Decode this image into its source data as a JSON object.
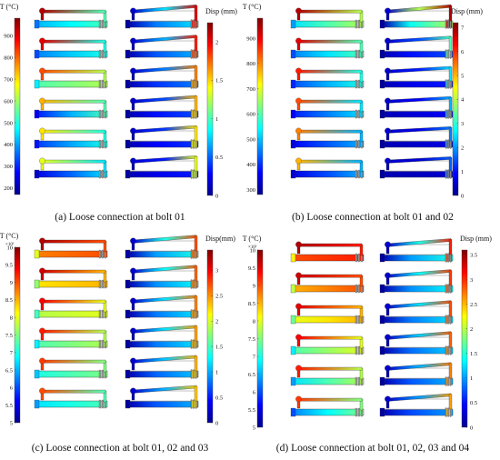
{
  "figure": {
    "panels": [
      {
        "id": "a",
        "caption": "(a) Loose connection at bolt 01",
        "temp_colorbar": {
          "title": "T (°C)",
          "exponent": "",
          "ticks": [
            "900",
            "800",
            "700",
            "600",
            "500",
            "400",
            "300",
            "200"
          ],
          "min": 170,
          "max": 980
        },
        "disp_colorbar": {
          "title": "Disp (mm)",
          "exponent": "",
          "ticks": [
            "2",
            "1.5",
            "1",
            "0.5",
            "0"
          ],
          "min": 0,
          "max": 2.25
        },
        "temp_models": [
          {
            "hot": 0.95,
            "warm": 0.45,
            "base": 0.3
          },
          {
            "hot": 0.9,
            "warm": 0.4,
            "base": 0.25
          },
          {
            "hot": 0.8,
            "warm": 0.55,
            "base": 0.45
          },
          {
            "hot": 0.7,
            "warm": 0.45,
            "base": 0.15
          },
          {
            "hot": 0.65,
            "warm": 0.4,
            "base": 0.18
          },
          {
            "hot": 0.6,
            "warm": 0.35,
            "base": 0.1
          }
        ],
        "disp_models": [
          {
            "mid": 0.35,
            "tip": 0.9
          },
          {
            "mid": 0.3,
            "tip": 0.85
          },
          {
            "mid": 0.25,
            "tip": 0.75
          },
          {
            "mid": 0.2,
            "tip": 0.7
          },
          {
            "mid": 0.18,
            "tip": 0.65
          },
          {
            "mid": 0.15,
            "tip": 0.6
          }
        ]
      },
      {
        "id": "b",
        "caption": "(b) Loose connection at bolt 01 and 02",
        "temp_colorbar": {
          "title": "T (°C)",
          "exponent": "",
          "ticks": [
            "900",
            "800",
            "700",
            "600",
            "500",
            "400",
            "300"
          ],
          "min": 280,
          "max": 980
        },
        "disp_colorbar": {
          "title": "Disp (mm)",
          "exponent": "",
          "ticks": [
            "7",
            "6",
            "5",
            "4",
            "3",
            "2",
            "1",
            "0"
          ],
          "min": 0,
          "max": 7.2
        },
        "temp_models": [
          {
            "hot": 0.95,
            "warm": 0.55,
            "base": 0.35
          },
          {
            "hot": 0.9,
            "warm": 0.45,
            "base": 0.25
          },
          {
            "hot": 0.85,
            "warm": 0.4,
            "base": 0.2
          },
          {
            "hot": 0.8,
            "warm": 0.35,
            "base": 0.15
          },
          {
            "hot": 0.75,
            "warm": 0.3,
            "base": 0.12
          },
          {
            "hot": 0.7,
            "warm": 0.3,
            "base": 0.1
          }
        ],
        "disp_models": [
          {
            "mid": 0.55,
            "tip": 0.95
          },
          {
            "mid": 0.2,
            "tip": 0.45
          },
          {
            "mid": 0.15,
            "tip": 0.35
          },
          {
            "mid": 0.12,
            "tip": 0.3
          },
          {
            "mid": 0.1,
            "tip": 0.25
          },
          {
            "mid": 0.08,
            "tip": 0.22
          }
        ]
      },
      {
        "id": "c",
        "caption": "(c) Loose connection at bolt 01, 02 and 03",
        "temp_colorbar": {
          "title": "T (°C)",
          "exponent": "×10²",
          "ticks": [
            "10",
            "9.5",
            "9",
            "8.5",
            "8",
            "7.5",
            "7",
            "6.5",
            "6",
            "5.5",
            "5"
          ],
          "min": 5,
          "max": 10
        },
        "disp_colorbar": {
          "title": "Disp(mm)",
          "exponent": "",
          "ticks": [
            "3",
            "2.5",
            "2",
            "1.5",
            "1",
            "0.5",
            "0"
          ],
          "min": 0,
          "max": 3.4
        },
        "temp_models": [
          {
            "hot": 0.95,
            "warm": 0.8,
            "base": 0.75
          },
          {
            "hot": 0.92,
            "warm": 0.7,
            "base": 0.65
          },
          {
            "hot": 0.88,
            "warm": 0.6,
            "base": 0.55
          },
          {
            "hot": 0.85,
            "warm": 0.55,
            "base": 0.45
          },
          {
            "hot": 0.82,
            "warm": 0.5,
            "base": 0.4
          },
          {
            "hot": 0.8,
            "warm": 0.45,
            "base": 0.35
          }
        ],
        "disp_models": [
          {
            "mid": 0.4,
            "tip": 0.8
          },
          {
            "mid": 0.38,
            "tip": 0.78
          },
          {
            "mid": 0.35,
            "tip": 0.75
          },
          {
            "mid": 0.35,
            "tip": 0.72
          },
          {
            "mid": 0.32,
            "tip": 0.7
          },
          {
            "mid": 0.3,
            "tip": 0.68
          }
        ]
      },
      {
        "id": "d",
        "caption": "(d) Loose connection at bolt 01, 02, 03 and 04",
        "temp_colorbar": {
          "title": "T (°C)",
          "exponent": "×10²",
          "ticks": [
            "10",
            "9.5",
            "9",
            "8.5",
            "8",
            "7.5",
            "7",
            "6.5",
            "6",
            "5.5",
            "5"
          ],
          "min": 5,
          "max": 10
        },
        "disp_colorbar": {
          "title": "Disp (mm)",
          "exponent": "",
          "ticks": [
            "3.5",
            "3",
            "2.5",
            "2",
            "1.5",
            "1",
            "0.5",
            "0"
          ],
          "min": 0,
          "max": 3.6
        },
        "temp_models": [
          {
            "hot": 0.95,
            "warm": 0.85,
            "base": 0.8
          },
          {
            "hot": 0.92,
            "warm": 0.8,
            "base": 0.7
          },
          {
            "hot": 0.9,
            "warm": 0.7,
            "base": 0.6
          },
          {
            "hot": 0.88,
            "warm": 0.6,
            "base": 0.45
          },
          {
            "hot": 0.85,
            "warm": 0.55,
            "base": 0.35
          },
          {
            "hot": 0.82,
            "warm": 0.5,
            "base": 0.25
          }
        ],
        "disp_models": [
          {
            "mid": 0.4,
            "tip": 0.85
          },
          {
            "mid": 0.38,
            "tip": 0.82
          },
          {
            "mid": 0.35,
            "tip": 0.8
          },
          {
            "mid": 0.33,
            "tip": 0.78
          },
          {
            "mid": 0.3,
            "tip": 0.75
          },
          {
            "mid": 0.28,
            "tip": 0.72
          }
        ]
      }
    ]
  }
}
